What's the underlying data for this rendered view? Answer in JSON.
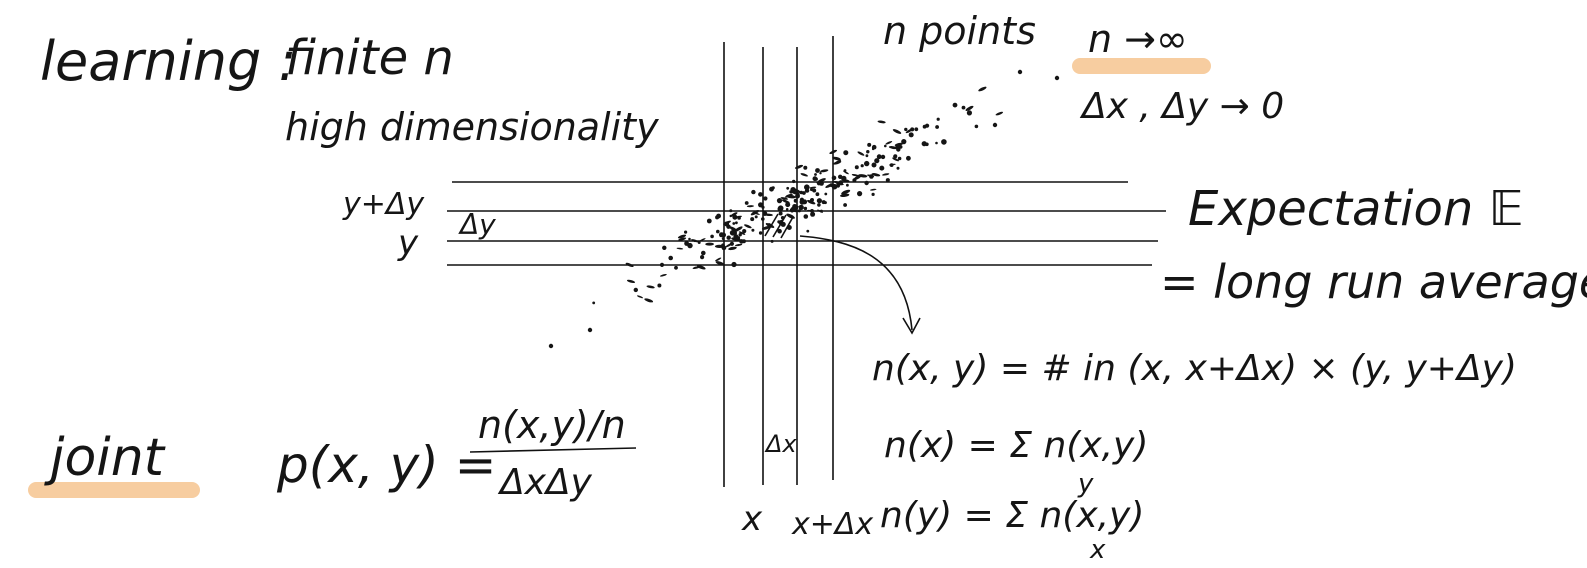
{
  "notes": {
    "learning_label": "learning :",
    "finite_n": "finite n",
    "high_dim": "high dimensionality",
    "n_points": "n points",
    "n_limit": "n →∞",
    "delta_limit": "Δx , Δy → 0",
    "expectation": "Expectation 𝔼",
    "long_run": "= long run average",
    "joint": "joint",
    "joint_formula_lhs": "p(x, y) =",
    "joint_formula_num": "n(x,y)/n",
    "joint_formula_den": "ΔxΔy",
    "count_def": "n(x, y) = # in (x, x+Δx) × (y, y+Δy)",
    "marg_x": "n(x) = Σ n(x,y)",
    "marg_x_sub": "y",
    "marg_y": "n(y) = Σ n(x,y)",
    "marg_y_sub": "x",
    "y_plus_dy": "y+Δy",
    "dy": "Δy",
    "y": "y",
    "dx": "Δx",
    "x": "x",
    "x_plus_dx": "x+Δx"
  },
  "colors": {
    "ink": "#151515",
    "highlight": "#f7cda0"
  }
}
